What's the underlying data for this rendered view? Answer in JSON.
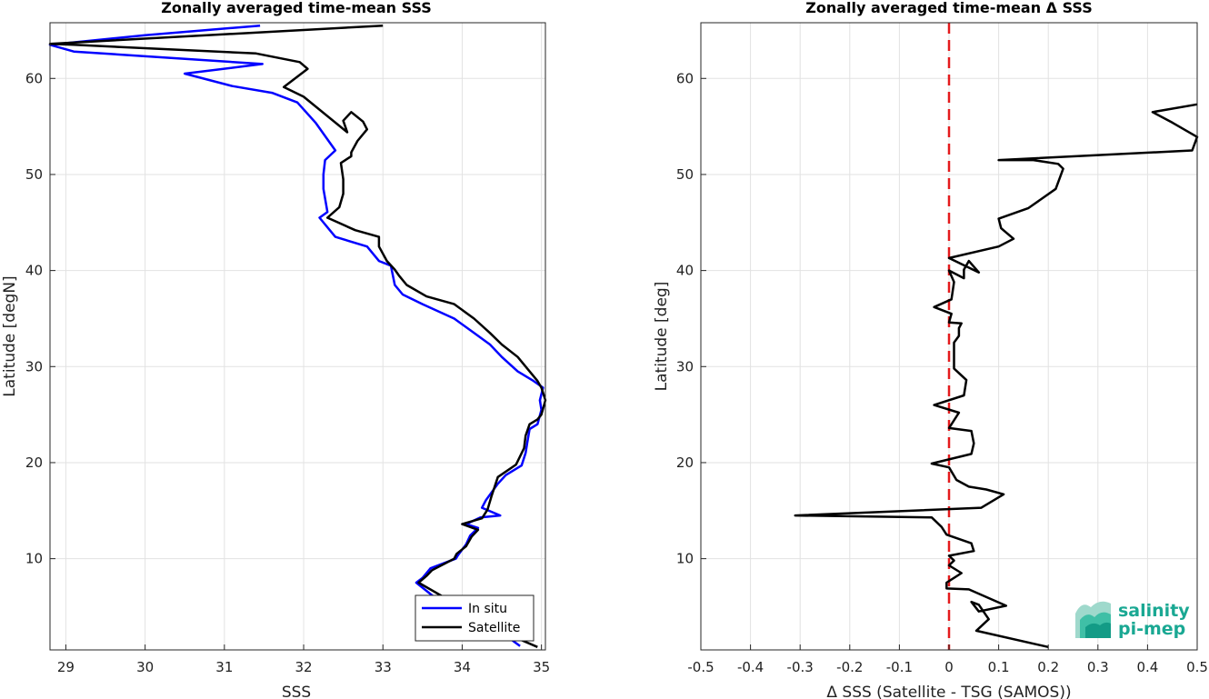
{
  "chart_data": [
    {
      "type": "line",
      "title": "Zonally averaged time-mean SSS",
      "xlabel": "SSS",
      "ylabel": "Latitude [degN]",
      "xlim": [
        28.8,
        35.05
      ],
      "ylim": [
        0.5,
        65.8
      ],
      "xticks": [
        "29",
        "30",
        "31",
        "32",
        "33",
        "34",
        "35"
      ],
      "yticks": [
        "10",
        "20",
        "30",
        "40",
        "50",
        "60"
      ],
      "grid": true,
      "legend": "bottom-right",
      "series": [
        {
          "name": "In situ",
          "color": "#0000ff",
          "x": [
            34.73,
            34.5,
            34.3,
            33.8,
            33.42,
            33.5,
            33.6,
            33.92,
            33.95,
            34.05,
            34.1,
            34.2,
            34.05,
            34.23,
            34.48,
            34.25,
            34.3,
            34.45,
            34.55,
            34.75,
            34.8,
            34.82,
            34.85,
            34.95,
            35.0,
            34.98,
            35.02,
            34.9,
            34.7,
            34.5,
            34.35,
            34.15,
            33.9,
            33.5,
            33.25,
            33.15,
            33.1,
            32.95,
            32.8,
            32.4,
            32.2,
            32.3,
            32.25,
            32.25,
            32.27,
            32.4,
            32.15,
            31.92,
            31.6,
            31.1,
            30.5,
            31.48,
            29.1,
            28.8,
            30.0,
            31.45
          ],
          "y": [
            0.9,
            2.3,
            3.8,
            5.0,
            7.5,
            8.0,
            9.0,
            10.0,
            10.4,
            11.5,
            12.4,
            13.2,
            13.6,
            14.3,
            14.5,
            15.3,
            16.1,
            17.8,
            18.7,
            19.7,
            21.0,
            22.0,
            23.5,
            24.0,
            25.5,
            26.5,
            27.8,
            28.5,
            29.5,
            31.0,
            32.3,
            33.5,
            35.0,
            36.5,
            37.5,
            38.5,
            40.5,
            41.0,
            42.5,
            43.5,
            45.5,
            46.1,
            48.5,
            50.0,
            51.5,
            52.5,
            55.4,
            57.5,
            58.5,
            59.2,
            60.5,
            61.5,
            62.8,
            63.5,
            64.5,
            65.5
          ]
        },
        {
          "name": "Satellite",
          "color": "#000000",
          "x": [
            34.95,
            34.5,
            34.1,
            33.85,
            33.45,
            33.55,
            33.62,
            33.9,
            33.93,
            34.05,
            34.12,
            34.2,
            34.0,
            34.25,
            34.32,
            34.37,
            34.45,
            34.68,
            34.78,
            34.8,
            34.85,
            34.95,
            35.0,
            35.05,
            35.0,
            34.95,
            34.85,
            34.7,
            34.5,
            34.35,
            34.15,
            33.9,
            33.55,
            33.3,
            33.2,
            33.15,
            33.05,
            32.95,
            32.95,
            32.65,
            32.3,
            32.45,
            32.5,
            32.5,
            32.47,
            32.6,
            32.6,
            32.68,
            32.8,
            32.75,
            32.6,
            32.5,
            32.55,
            32.0,
            31.75,
            32.05,
            31.95,
            31.4,
            29.1,
            28.8,
            33.0
          ],
          "y": [
            0.8,
            2.4,
            4.0,
            5.6,
            7.5,
            8.2,
            8.8,
            10.0,
            10.5,
            11.3,
            12.3,
            13.0,
            13.6,
            14.2,
            15.1,
            16.5,
            18.5,
            19.8,
            21.5,
            22.8,
            24.0,
            24.5,
            25.0,
            26.5,
            27.8,
            28.5,
            29.5,
            31.0,
            32.3,
            33.5,
            35.0,
            36.5,
            37.3,
            38.5,
            39.5,
            40.1,
            41.0,
            42.5,
            43.5,
            44.2,
            45.5,
            46.6,
            48.0,
            49.5,
            51.2,
            51.9,
            52.3,
            53.5,
            54.7,
            55.5,
            56.5,
            55.6,
            54.4,
            58.1,
            59.1,
            61.0,
            61.7,
            62.6,
            63.5,
            63.6,
            65.5
          ]
        }
      ]
    },
    {
      "type": "line",
      "title": "Zonally averaged time-mean Δ SSS",
      "xlabel": "Δ SSS (Satellite - TSG (SAMOS))",
      "ylabel": "Latitude [deg]",
      "xlim": [
        -0.5,
        0.5
      ],
      "ylim": [
        0.5,
        65.8
      ],
      "xticks": [
        "-0.5",
        "-0.4",
        "-0.3",
        "-0.2",
        "-0.1",
        "0",
        "0.1",
        "0.2",
        "0.3",
        "0.4",
        "0.5"
      ],
      "yticks": [
        "10",
        "20",
        "30",
        "40",
        "50",
        "60"
      ],
      "grid": true,
      "reference_line": {
        "x": 0,
        "color": "#e41a1c",
        "style": "dashed"
      },
      "series": [
        {
          "color": "#000000",
          "x": [
            0.2,
            0.055,
            0.08,
            0.06,
            0.045,
            0.06,
            0.115,
            0.04,
            -0.005,
            -0.005,
            0.025,
            0.0,
            0.01,
            0.0,
            0.05,
            0.045,
            -0.005,
            -0.015,
            -0.035,
            -0.31,
            0.065,
            0.11,
            0.075,
            0.04,
            0.015,
            0.0,
            -0.035,
            0.045,
            0.05,
            0.045,
            0.0,
            0.02,
            -0.03,
            0.03,
            0.035,
            0.01,
            0.01,
            0.01,
            0.02,
            0.02,
            0.025,
            0.0,
            0.005,
            -0.03,
            0.005,
            0.01,
            0.0,
            0.03,
            0.03,
            0.04,
            0.06,
            0.0,
            0.1,
            0.13,
            0.105,
            0.1,
            0.16,
            0.215,
            0.23,
            0.22,
            0.17,
            0.1,
            0.49,
            0.5,
            0.45,
            0.41,
            0.5
          ],
          "y": [
            0.8,
            2.5,
            3.7,
            5.2,
            5.5,
            4.5,
            5.1,
            6.8,
            6.9,
            7.5,
            8.5,
            9.3,
            9.8,
            10.3,
            10.8,
            11.6,
            12.5,
            13.3,
            14.3,
            14.5,
            15.3,
            16.7,
            17.2,
            17.5,
            18.2,
            19.5,
            19.9,
            20.9,
            22.0,
            23.3,
            23.6,
            25.2,
            26.0,
            27.0,
            28.6,
            29.8,
            31.0,
            32.5,
            33.2,
            34.0,
            34.5,
            34.6,
            35.5,
            36.2,
            37.0,
            38.8,
            40.0,
            39.2,
            40.1,
            41.0,
            39.8,
            41.3,
            42.5,
            43.3,
            44.4,
            45.4,
            46.5,
            48.5,
            50.6,
            51.1,
            51.5,
            51.5,
            52.5,
            53.9,
            55.4,
            56.5,
            57.3
          ]
        }
      ]
    }
  ],
  "legend": {
    "entries": [
      "In situ",
      "Satellite"
    ]
  },
  "logo": {
    "line1": "salinity",
    "line2": "pi-mep"
  }
}
